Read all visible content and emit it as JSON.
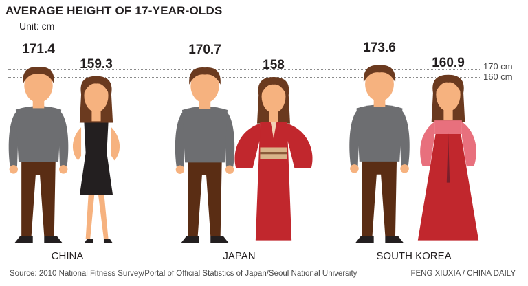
{
  "header": {
    "title": "AVERAGE HEIGHT OF 17-YEAR-OLDS",
    "unit": "Unit: cm"
  },
  "reference_lines": [
    {
      "value": 170,
      "label": "170 cm"
    },
    {
      "value": 160,
      "label": "160 cm"
    }
  ],
  "colors": {
    "skin": "#f6b27f",
    "hair": "#6b3a1f",
    "shirt": "#6d6e71",
    "trousers": "#5a2d14",
    "dress_black": "#231f20",
    "kimono": "#c1272d",
    "hanbok": "#e8707d",
    "text": "#231f20"
  },
  "chart_data": {
    "type": "bar",
    "title": "AVERAGE HEIGHT OF 17-YEAR-OLDS",
    "ylabel": "Unit: cm",
    "categories": [
      "CHINA",
      "JAPAN",
      "SOUTH KOREA"
    ],
    "series": [
      {
        "values": [
          171.4,
          170.7,
          173.6
        ]
      },
      {
        "values": [
          159.3,
          158,
          160.9
        ]
      }
    ],
    "value_labels": [
      [
        "171.4",
        "159.3"
      ],
      [
        "170.7",
        "158"
      ],
      [
        "173.6",
        "160.9"
      ]
    ],
    "reference_lines": [
      170,
      160
    ]
  },
  "footer": {
    "source": "Source: 2010 National Fitness Survey/Portal of Official Statistics of Japan/Seoul National University",
    "credit": "FENG XIUXIA / CHINA DAILY"
  }
}
